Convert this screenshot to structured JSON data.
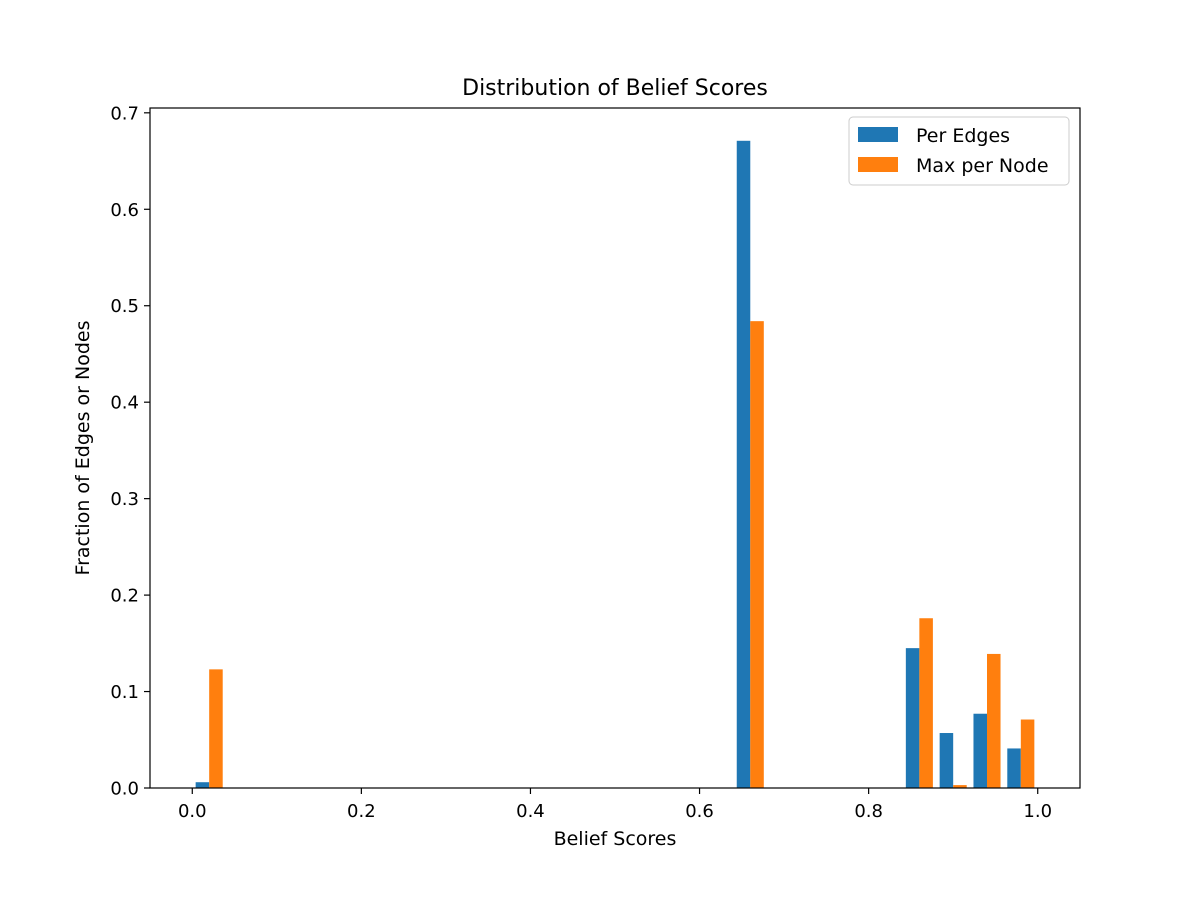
{
  "chart_data": {
    "type": "bar",
    "title": "Distribution of Belief Scores",
    "xlabel": "Belief Scores",
    "ylabel": "Fraction of Edges or Nodes",
    "xlim": [
      -0.05,
      1.05
    ],
    "ylim": [
      0,
      0.705
    ],
    "xticks": [
      0.0,
      0.2,
      0.4,
      0.6,
      0.8,
      1.0
    ],
    "xtick_labels": [
      "0.0",
      "0.2",
      "0.4",
      "0.6",
      "0.8",
      "1.0"
    ],
    "yticks": [
      0.0,
      0.1,
      0.2,
      0.3,
      0.4,
      0.5,
      0.6,
      0.7
    ],
    "ytick_labels": [
      "0.0",
      "0.1",
      "0.2",
      "0.3",
      "0.4",
      "0.5",
      "0.6",
      "0.7"
    ],
    "bin_edges": [
      0.0,
      0.04,
      0.08,
      0.12,
      0.16,
      0.2,
      0.24,
      0.28,
      0.32,
      0.36,
      0.4,
      0.44,
      0.48,
      0.52,
      0.56,
      0.6,
      0.64,
      0.68,
      0.72,
      0.76,
      0.8,
      0.84,
      0.88,
      0.92,
      0.96,
      1.0
    ],
    "grid": false,
    "legend_position": "top-right",
    "series": [
      {
        "name": "Per Edges",
        "color": "#1f77b4",
        "values": [
          0.006,
          0,
          0,
          0,
          0,
          0,
          0,
          0,
          0,
          0,
          0,
          0,
          0,
          0,
          0,
          0,
          0.671,
          0,
          0,
          0,
          0,
          0.145,
          0.057,
          0.077,
          0.041
        ]
      },
      {
        "name": "Max per Node",
        "color": "#ff7f0e",
        "values": [
          0.123,
          0,
          0,
          0,
          0,
          0,
          0,
          0,
          0,
          0,
          0,
          0,
          0,
          0,
          0,
          0,
          0.484,
          0,
          0,
          0,
          0,
          0.176,
          0.003,
          0.139,
          0.071
        ]
      }
    ]
  }
}
